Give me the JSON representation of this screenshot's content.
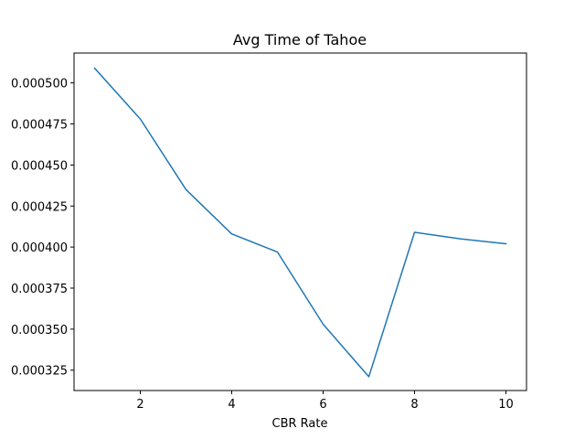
{
  "chart_data": {
    "type": "line",
    "title": "Avg Time of Tahoe",
    "xlabel": "CBR Rate",
    "ylabel": "",
    "xlim": [
      0.55,
      10.45
    ],
    "ylim": [
      0.0003126,
      0.0005182
    ],
    "xticks": [
      2,
      4,
      6,
      8,
      10
    ],
    "xtick_labels": [
      "2",
      "4",
      "6",
      "8",
      "10"
    ],
    "yticks": [
      0.000325,
      0.00035,
      0.000375,
      0.0004,
      0.000425,
      0.00045,
      0.000475,
      0.0005
    ],
    "ytick_labels": [
      "0.000325",
      "0.000350",
      "0.000375",
      "0.000400",
      "0.000425",
      "0.000450",
      "0.000475",
      "0.000500"
    ],
    "grid": false,
    "series": [
      {
        "color": "#1f77b4",
        "x": [
          1,
          2,
          3,
          4,
          5,
          6,
          7,
          8,
          9,
          10
        ],
        "y": [
          0.000509,
          0.000478,
          0.000435,
          0.000408,
          0.000397,
          0.000353,
          0.000321,
          0.000409,
          0.000405,
          0.000402
        ]
      }
    ]
  }
}
